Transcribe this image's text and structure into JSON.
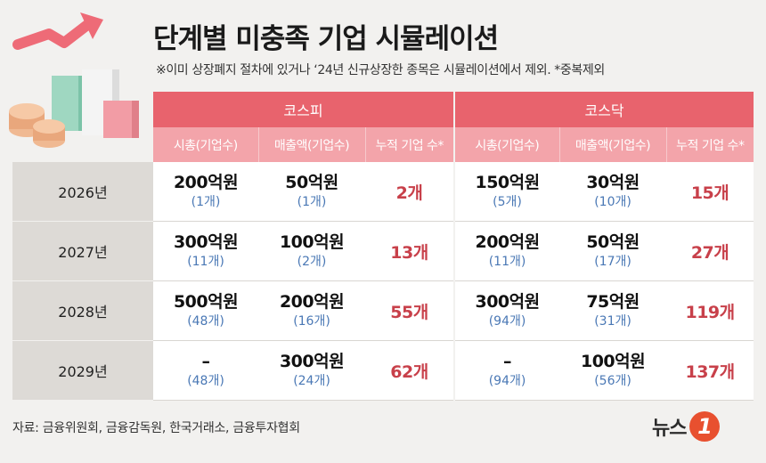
{
  "title": "단계별 미충족 기업 시뮬레이션",
  "subnote": "※이미 상장폐지 절차에 있거나 ‘24년 신규상장한 종목은 시뮬레이션에서 제외.   *중복제외",
  "markets": [
    "코스피",
    "코스닥"
  ],
  "columns": [
    "시총(기업수)",
    "매출액(기업수)",
    "누적 기업 수*",
    "시총(기업수)",
    "매출액(기업수)",
    "누적 기업 수*"
  ],
  "rows": [
    {
      "year": "2026년",
      "kospi_cap": "200억원",
      "kospi_cap_n": "(1개)",
      "kospi_rev": "50억원",
      "kospi_rev_n": "(1개)",
      "kospi_cum": "2개",
      "kosdaq_cap": "150억원",
      "kosdaq_cap_n": "(5개)",
      "kosdaq_rev": "30억원",
      "kosdaq_rev_n": "(10개)",
      "kosdaq_cum": "15개"
    },
    {
      "year": "2027년",
      "kospi_cap": "300억원",
      "kospi_cap_n": "(11개)",
      "kospi_rev": "100억원",
      "kospi_rev_n": "(2개)",
      "kospi_cum": "13개",
      "kosdaq_cap": "200억원",
      "kosdaq_cap_n": "(11개)",
      "kosdaq_rev": "50억원",
      "kosdaq_rev_n": "(17개)",
      "kosdaq_cum": "27개"
    },
    {
      "year": "2028년",
      "kospi_cap": "500억원",
      "kospi_cap_n": "(48개)",
      "kospi_rev": "200억원",
      "kospi_rev_n": "(16개)",
      "kospi_cum": "55개",
      "kosdaq_cap": "300억원",
      "kosdaq_cap_n": "(94개)",
      "kosdaq_rev": "75억원",
      "kosdaq_rev_n": "(31개)",
      "kosdaq_cum": "119개"
    },
    {
      "year": "2029년",
      "kospi_cap": "–",
      "kospi_cap_n": "(48개)",
      "kospi_rev": "300억원",
      "kospi_rev_n": "(24개)",
      "kospi_cum": "62개",
      "kosdaq_cap": "–",
      "kosdaq_cap_n": "(94개)",
      "kosdaq_rev": "100억원",
      "kosdaq_rev_n": "(56개)",
      "kosdaq_cum": "137개"
    }
  ],
  "source": "자료: 금융위원회, 금융감독원, 한국거래소, 금융투자협회",
  "logo": {
    "text": "뉴스",
    "mark": "1"
  },
  "colors": {
    "header_dark": "#e8636d",
    "header_light": "#f3a4aa",
    "cumulative_text": "#c8404a",
    "count_text": "#4a78b5",
    "logo_mark": "#e8502f"
  }
}
